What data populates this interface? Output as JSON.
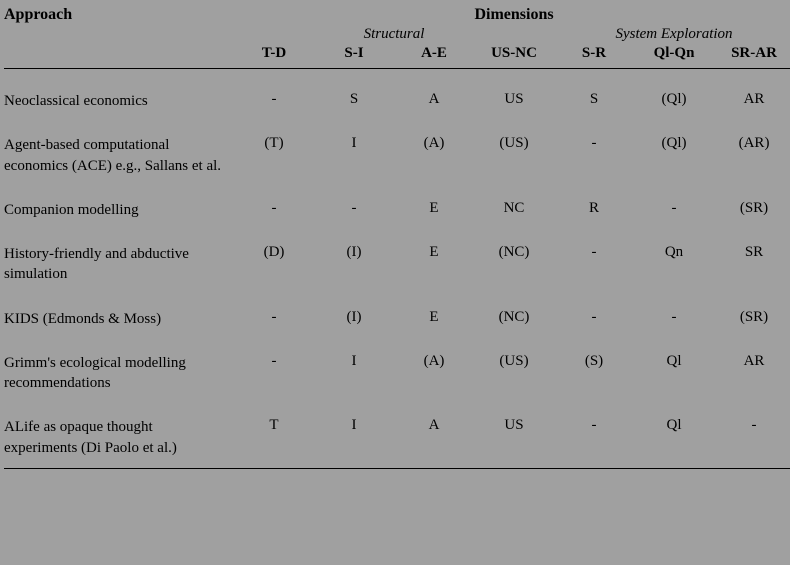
{
  "headers": {
    "approach": "Approach",
    "dimensions": "Dimensions",
    "structural": "Structural",
    "system_exploration": "System Exploration",
    "dims": [
      "T-D",
      "S-I",
      "A-E",
      "US-NC",
      "S-R",
      "Ql-Qn",
      "SR-AR"
    ]
  },
  "rows": [
    {
      "label": "Neoclassical economics",
      "cells": [
        "-",
        "S",
        "A",
        "US",
        "S",
        "(Ql)",
        "AR"
      ]
    },
    {
      "label": "Agent-based computational economics (ACE) e.g., Sallans et al.",
      "cells": [
        "(T)",
        "I",
        "(A)",
        "(US)",
        "-",
        "(Ql)",
        "(AR)"
      ]
    },
    {
      "label": "Companion modelling",
      "cells": [
        "-",
        "-",
        "E",
        "NC",
        "R",
        "-",
        "(SR)"
      ]
    },
    {
      "label": "History-friendly and abductive simulation",
      "cells": [
        "(D)",
        "(I)",
        "E",
        "(NC)",
        "-",
        "Qn",
        "SR"
      ]
    },
    {
      "label": "KIDS (Edmonds & Moss)",
      "cells": [
        "-",
        "(I)",
        "E",
        "(NC)",
        "-",
        "-",
        "(SR)"
      ]
    },
    {
      "label": "Grimm's ecological modelling recommendations",
      "cells": [
        "-",
        "I",
        "(A)",
        "(US)",
        "(S)",
        "Ql",
        "AR"
      ]
    },
    {
      "label": "ALife as opaque thought experiments (Di Paolo et al.)",
      "cells": [
        "T",
        "I",
        "A",
        "US",
        "-",
        "Ql",
        "-"
      ]
    }
  ]
}
